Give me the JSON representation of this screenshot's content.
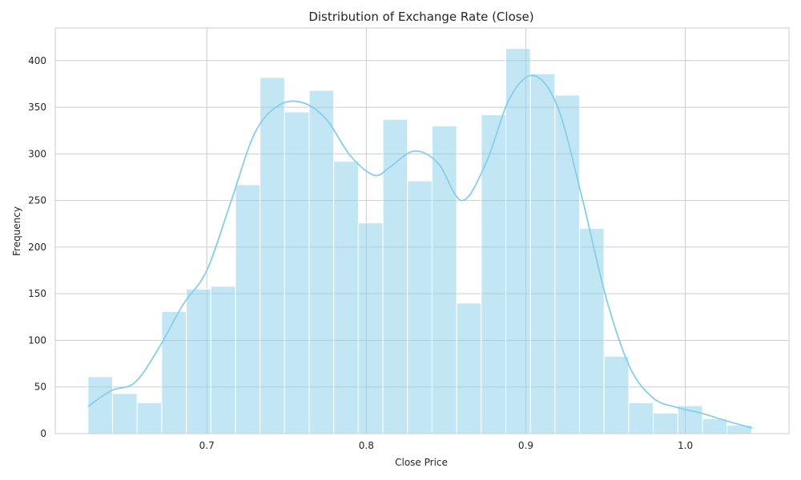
{
  "chart_data": {
    "type": "bar",
    "title": "Distribution of Exchange Rate (Close)",
    "xlabel": "Close Price",
    "ylabel": "Frequency",
    "xlim": [
      0.605,
      1.065
    ],
    "ylim": [
      0,
      435
    ],
    "xticks": [
      0.7,
      0.8,
      0.9,
      1.0
    ],
    "xtick_labels": [
      "0.7",
      "0.8",
      "0.9",
      "1.0"
    ],
    "yticks": [
      0,
      50,
      100,
      150,
      200,
      250,
      300,
      350,
      400
    ],
    "ytick_labels": [
      "0",
      "50",
      "100",
      "150",
      "200",
      "250",
      "300",
      "350",
      "400"
    ],
    "grid": true,
    "bin_start": 0.6255,
    "bin_width": 0.01541,
    "counts": [
      61,
      43,
      33,
      131,
      155,
      158,
      267,
      382,
      345,
      368,
      292,
      226,
      337,
      271,
      330,
      140,
      342,
      413,
      386,
      363,
      220,
      83,
      33,
      22,
      30,
      16,
      9
    ],
    "kde": {
      "x": [
        0.6255,
        0.64,
        0.655,
        0.67,
        0.685,
        0.7,
        0.715,
        0.73,
        0.745,
        0.76,
        0.775,
        0.79,
        0.805,
        0.815,
        0.83,
        0.845,
        0.86,
        0.875,
        0.89,
        0.905,
        0.92,
        0.935,
        0.95,
        0.965,
        0.98,
        0.995,
        1.01,
        1.025,
        1.042
      ],
      "y": [
        29,
        46,
        55,
        92,
        138,
        175,
        248,
        322,
        352,
        355,
        337,
        298,
        277,
        286,
        303,
        290,
        250,
        290,
        360,
        384,
        350,
        255,
        148,
        72,
        38,
        28,
        22,
        14,
        6
      ]
    },
    "colors": {
      "bar": "#87ceeb",
      "bar_opacity": 0.5,
      "kde": "#87ceeb"
    }
  }
}
